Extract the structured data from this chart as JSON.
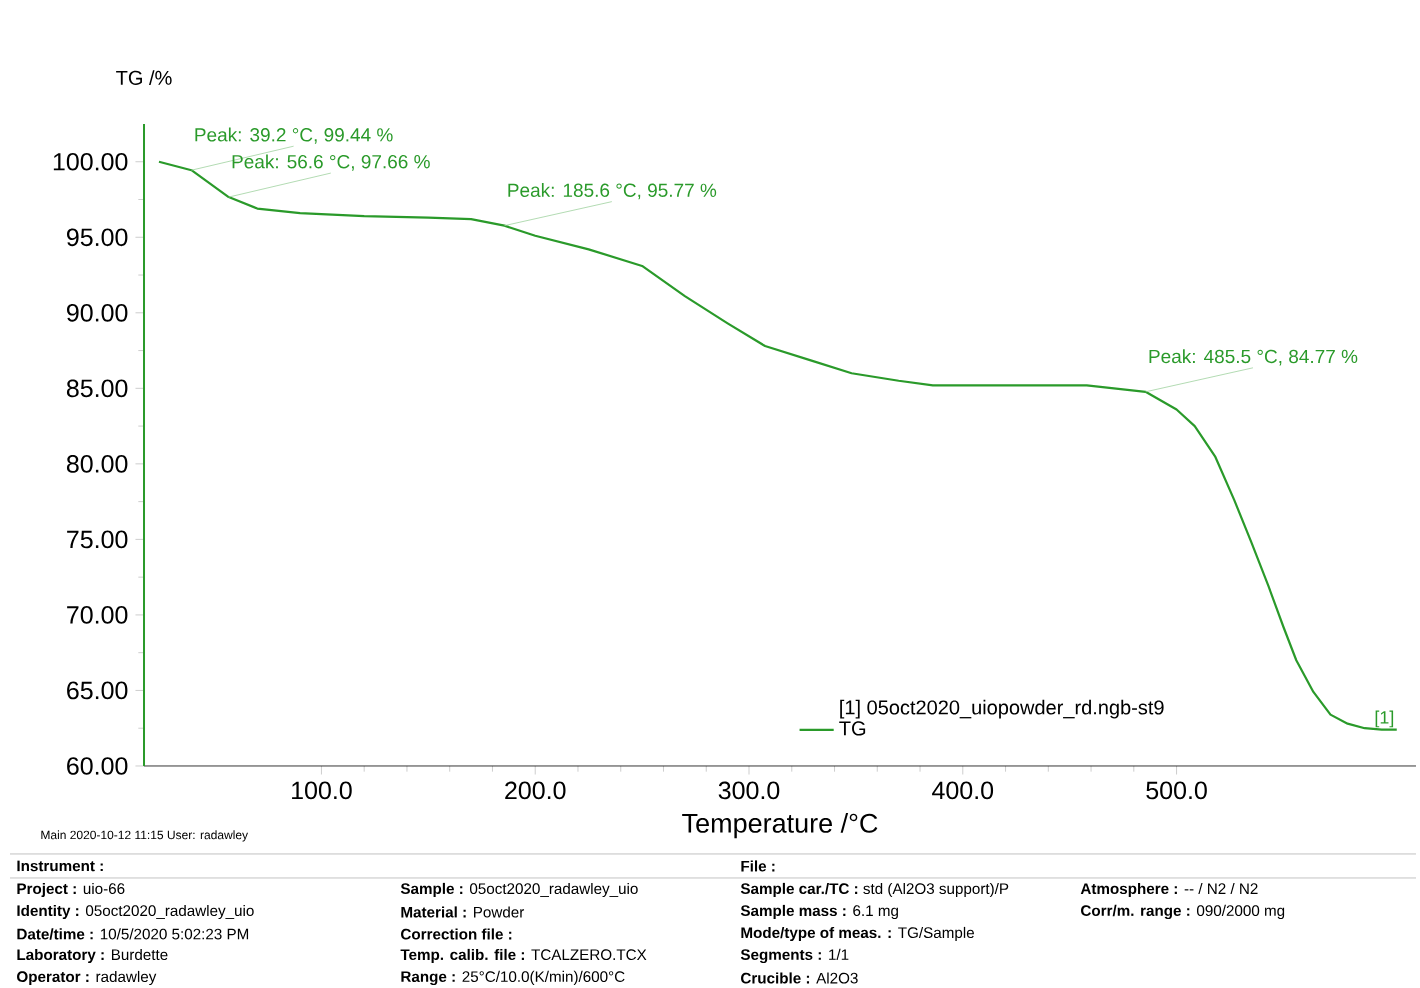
{
  "chart_data": {
    "type": "line",
    "xlabel": "Temperature /°C",
    "ylabel": "TG /%",
    "xlim": [
      17,
      612
    ],
    "ylim": [
      60,
      102.5
    ],
    "xticks": [
      {
        "value": 100,
        "label": "100.0"
      },
      {
        "value": 200,
        "label": "200.0"
      },
      {
        "value": 300,
        "label": "300.0"
      },
      {
        "value": 400,
        "label": "400.0"
      },
      {
        "value": 500,
        "label": "500.0"
      }
    ],
    "yticks": [
      {
        "value": 60,
        "label": "60.00"
      },
      {
        "value": 65,
        "label": "65.00"
      },
      {
        "value": 70,
        "label": "70.00"
      },
      {
        "value": 75,
        "label": "75.00"
      },
      {
        "value": 80,
        "label": "80.00"
      },
      {
        "value": 85,
        "label": "85.00"
      },
      {
        "value": 90,
        "label": "90.00"
      },
      {
        "value": 95,
        "label": "95.00"
      },
      {
        "value": 100,
        "label": "100.00"
      }
    ],
    "x": [
      24,
      39.2,
      56.6,
      70,
      90,
      120,
      150,
      170,
      185.6,
      200,
      225,
      250,
      270,
      290,
      307.5,
      330,
      348,
      370,
      386,
      420,
      458,
      485.5,
      500,
      508.5,
      518,
      527,
      535,
      543,
      550,
      556,
      564,
      572,
      580,
      588,
      596,
      603
    ],
    "series": [
      {
        "name": "TG",
        "color": "#2a9a2a",
        "values": [
          100.0,
          99.44,
          97.66,
          96.9,
          96.6,
          96.4,
          96.3,
          96.2,
          95.77,
          95.1,
          94.2,
          93.1,
          91.1,
          89.3,
          87.8,
          86.8,
          86.0,
          85.5,
          85.2,
          85.2,
          85.2,
          84.77,
          83.6,
          82.5,
          80.5,
          77.6,
          74.8,
          71.9,
          69.2,
          67.0,
          64.9,
          63.4,
          62.8,
          62.5,
          62.4,
          62.4
        ]
      }
    ],
    "legend": "bottom",
    "legend_title": "[1]  05oct2020_uiopowder_rd.ngb-st9",
    "annotations": [
      {
        "text": "Peak: 39.2 °C, 99.44 %",
        "x": 39.2,
        "y": 99.44
      },
      {
        "text": "Peak: 56.6 °C, 97.66 %",
        "x": 56.6,
        "y": 97.66
      },
      {
        "text": "Peak: 185.6 °C, 95.77 %",
        "x": 185.6,
        "y": 95.77
      },
      {
        "text": "Peak: 485.5 °C, 84.77 %",
        "x": 485.5,
        "y": 84.77
      },
      "[1]",
      "Main  2020-10-12 11:15  User: radawley",
      "**Instrument :**",
      "**File :**",
      "**Project :**  uio-66",
      "**Identity :**  05oct2020_radawley_uio",
      "**Date/time :**  10/5/2020 5:02:23 PM",
      "**Laboratory :**  Burdette",
      "**Operator :**  radawley",
      "**Sample :**  05oct2020_radawley_uio",
      "**Material :**  Powder",
      "**Correction file :**",
      "**Temp. calib. file :**  TCALZERO.TCX",
      "**Range :**  25°C/10.0(K/min)/600°C",
      "**Sample car./TC :**  std (Al2O3 support)/P",
      "**Sample mass :**  6.1 mg",
      "**Mode/type of meas. :**  TG/Sample",
      "**Segments :**  1/1",
      "**Crucible :**  Al2O3",
      "**Atmosphere :**  -- / N2 / N2",
      "**Corr/m. range :**  090/2000 mg"
    ]
  }
}
